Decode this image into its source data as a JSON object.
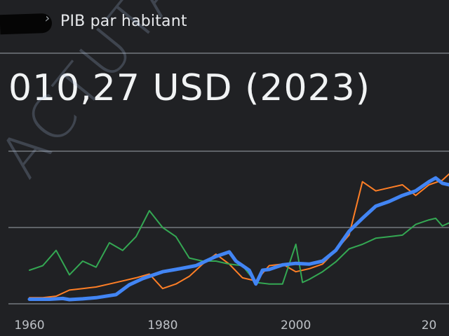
{
  "header": {
    "separator": "›",
    "title": "PIB par habitant"
  },
  "summary": {
    "value": "010,27 USD (2023)"
  },
  "watermark": {
    "text": "ACTUTANA.COM"
  },
  "colors": {
    "background": "#202124",
    "grid": "#5f6368",
    "text": "#e8eaed",
    "blue": "#4285f4",
    "orange": "#ff7f26",
    "green": "#34a853"
  },
  "chart_data": {
    "type": "line",
    "title": "",
    "xlabel": "",
    "ylabel": "",
    "xlim": [
      1960,
      2023
    ],
    "ylim": [
      0,
      2000
    ],
    "grid": true,
    "legend": "none",
    "x_ticks": [
      "1960",
      "1980",
      "2000",
      "20"
    ],
    "y_ticks": [
      "",
      "",
      ""
    ],
    "series": [
      {
        "color": "#4285f4",
        "x": [
          1960,
          1963,
          1965,
          1966,
          1968,
          1970,
          1973,
          1975,
          1977,
          1980,
          1982,
          1985,
          1988,
          1990,
          1991,
          1993,
          1994,
          1995,
          1996,
          1998,
          2000,
          2002,
          2004,
          2006,
          2008,
          2010,
          2012,
          2014,
          2016,
          2018,
          2020,
          2021,
          2022,
          2023
        ],
        "values": [
          60,
          60,
          70,
          55,
          65,
          80,
          120,
          250,
          330,
          420,
          450,
          500,
          620,
          680,
          560,
          440,
          260,
          440,
          450,
          510,
          530,
          520,
          560,
          700,
          950,
          1120,
          1280,
          1340,
          1420,
          1480,
          1600,
          1650,
          1580,
          1560
        ]
      },
      {
        "color": "#ff7f26",
        "x": [
          1960,
          1962,
          1964,
          1966,
          1968,
          1970,
          1972,
          1974,
          1976,
          1978,
          1980,
          1982,
          1984,
          1986,
          1988,
          1990,
          1992,
          1994,
          1996,
          1998,
          2000,
          2002,
          2004,
          2006,
          2008,
          2010,
          2012,
          2014,
          2016,
          2018,
          2020,
          2022,
          2023
        ],
        "values": [
          80,
          80,
          100,
          180,
          200,
          220,
          260,
          300,
          340,
          390,
          200,
          260,
          360,
          520,
          650,
          520,
          340,
          300,
          500,
          520,
          420,
          460,
          520,
          700,
          900,
          1600,
          1480,
          1520,
          1560,
          1420,
          1560,
          1620,
          1700
        ]
      },
      {
        "color": "#34a853",
        "x": [
          1960,
          1962,
          1964,
          1966,
          1968,
          1970,
          1972,
          1974,
          1976,
          1978,
          1980,
          1982,
          1984,
          1986,
          1988,
          1990,
          1992,
          1994,
          1996,
          1998,
          2000,
          2001,
          2002,
          2004,
          2006,
          2008,
          2010,
          2012,
          2014,
          2016,
          2018,
          2020,
          2021,
          2022,
          2023
        ],
        "values": [
          440,
          500,
          700,
          380,
          560,
          480,
          800,
          700,
          880,
          1220,
          1000,
          880,
          600,
          560,
          560,
          520,
          500,
          280,
          260,
          260,
          780,
          280,
          320,
          420,
          550,
          720,
          780,
          860,
          880,
          900,
          1040,
          1100,
          1120,
          1020,
          1060
        ]
      }
    ]
  }
}
